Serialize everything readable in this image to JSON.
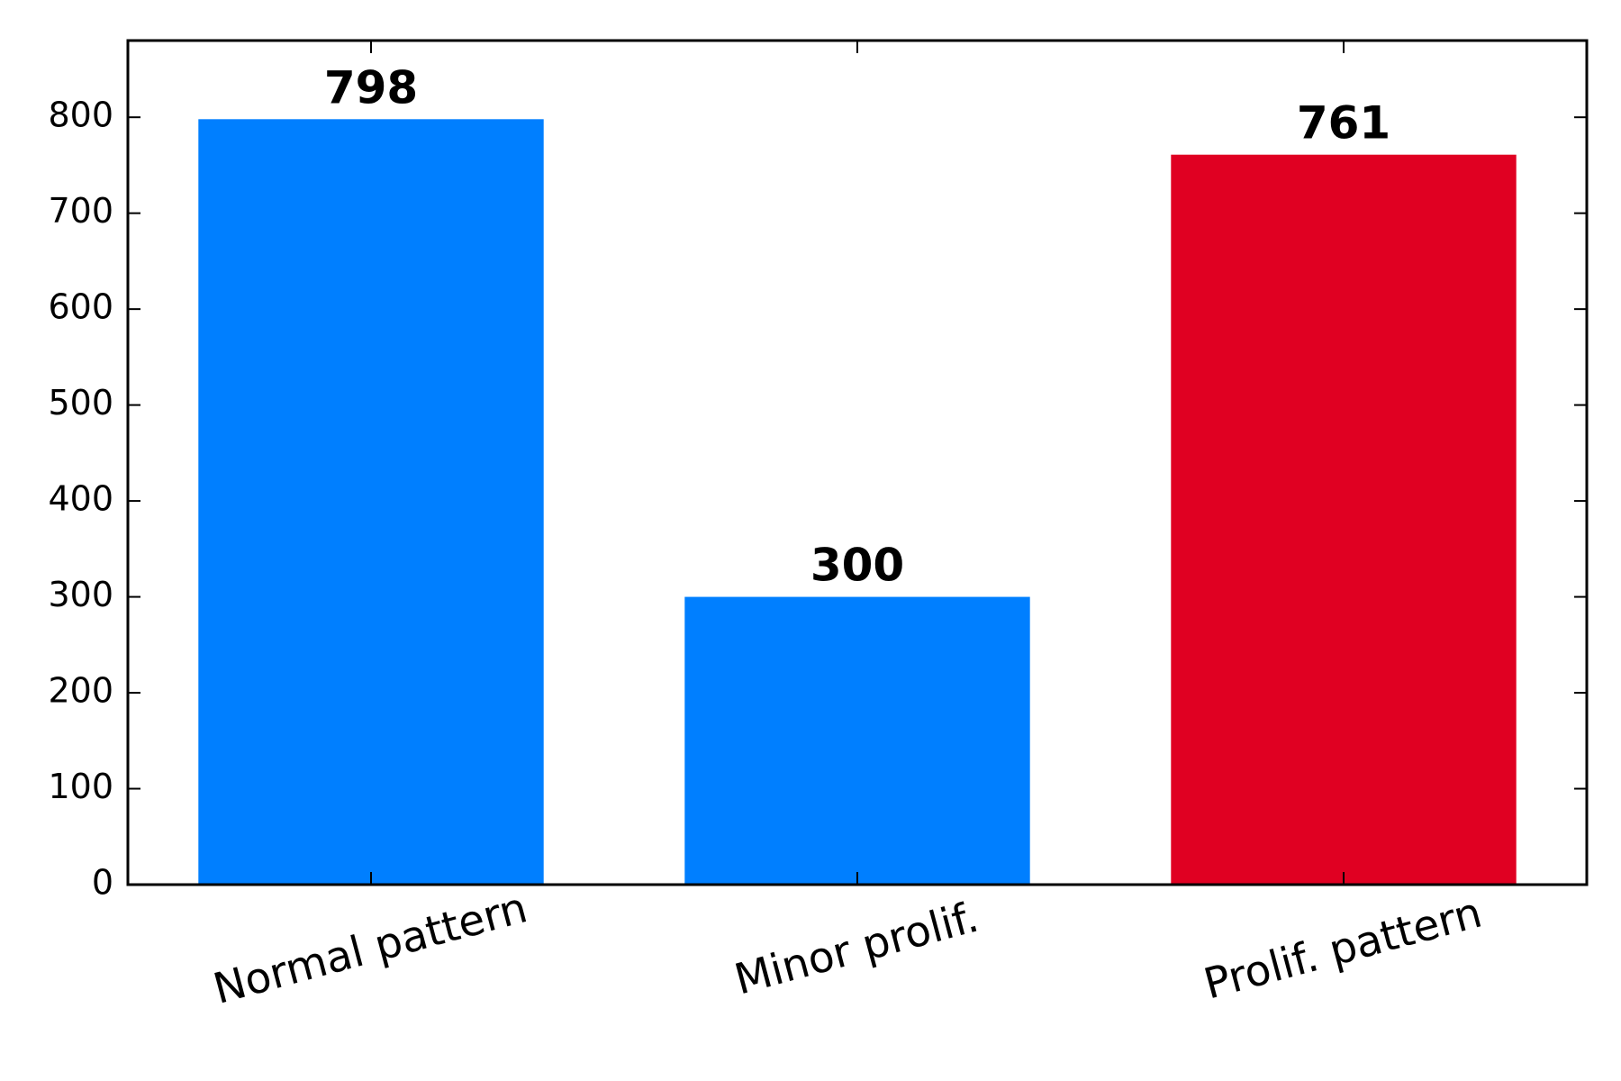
{
  "chart_data": {
    "type": "bar",
    "title": "",
    "xlabel": "",
    "ylabel": "",
    "categories": [
      "Normal pattern",
      "Minor prolif.",
      "Prolif. pattern"
    ],
    "values": [
      798,
      300,
      761
    ],
    "data_labels": [
      "798",
      "300",
      "761"
    ],
    "bar_colors": [
      "#007fff",
      "#007fff",
      "#e00022"
    ],
    "ylim": [
      0,
      880
    ],
    "yticks": [
      0,
      100,
      200,
      300,
      400,
      500,
      600,
      700,
      800
    ],
    "ytick_labels": [
      "0",
      "100",
      "200",
      "300",
      "400",
      "500",
      "600",
      "700",
      "800"
    ],
    "x_tick_rotation_deg": 15,
    "grid": false,
    "legend": "none"
  }
}
